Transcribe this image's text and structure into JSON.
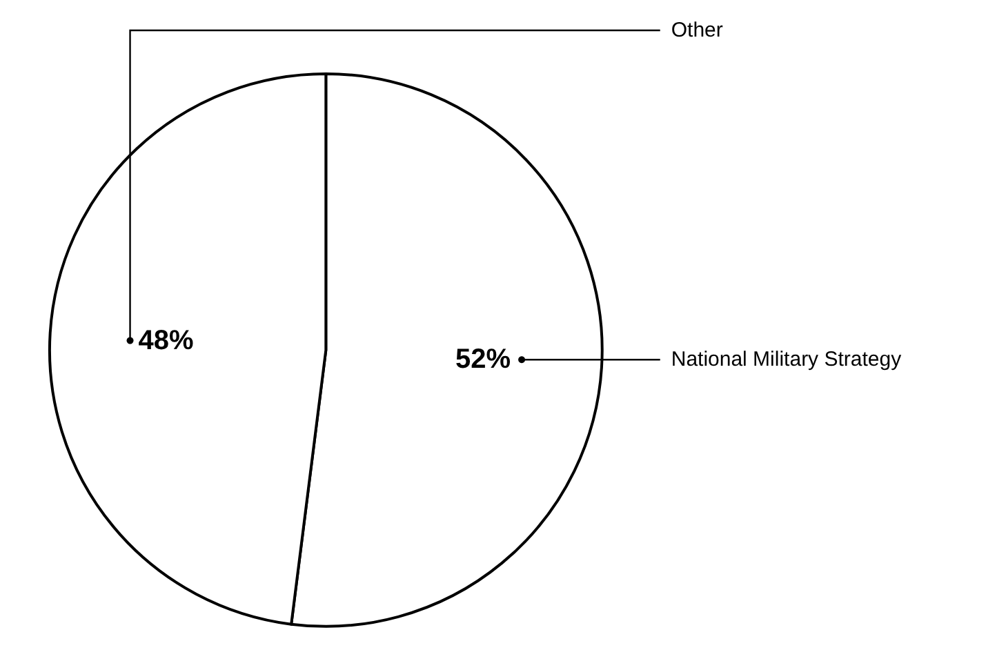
{
  "chart_data": {
    "type": "pie",
    "categories": [
      "National Military Strategy",
      "Other"
    ],
    "values": [
      52,
      48
    ],
    "value_labels": [
      "52%",
      "48%"
    ],
    "colors": [
      "#ffffff",
      "#ffffff"
    ],
    "legend": false
  }
}
